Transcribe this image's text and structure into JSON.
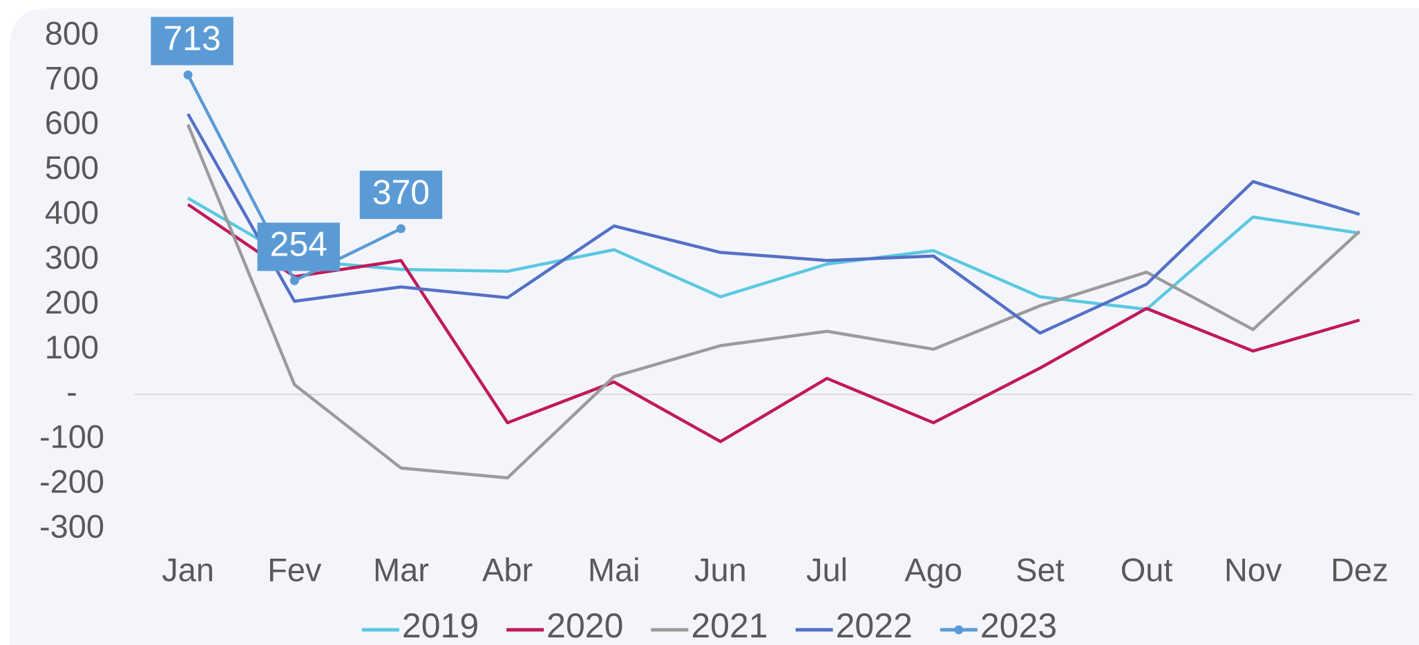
{
  "chart_data": {
    "type": "line",
    "categories": [
      "Jan",
      "Fev",
      "Mar",
      "Abr",
      "Mai",
      "Jun",
      "Jul",
      "Ago",
      "Set",
      "Out",
      "Nov",
      "Dez"
    ],
    "series": [
      {
        "name": "2019",
        "color": "#5bc8e0",
        "values": [
          438,
          300,
          279,
          275,
          323,
          218,
          291,
          321,
          218,
          190,
          396,
          360
        ]
      },
      {
        "name": "2020",
        "color": "#c0195a",
        "values": [
          424,
          263,
          299,
          -63,
          28,
          -105,
          36,
          -63,
          59,
          192,
          97,
          166
        ]
      },
      {
        "name": "2021",
        "color": "#9b9b9b",
        "values": [
          602,
          22,
          -164,
          -186,
          40,
          109,
          141,
          101,
          198,
          273,
          145,
          364
        ]
      },
      {
        "name": "2022",
        "color": "#5470c6",
        "values": [
          626,
          208,
          240,
          216,
          376,
          317,
          299,
          309,
          137,
          246,
          475,
          402
        ]
      },
      {
        "name": "2023",
        "color": "#5b9bd5",
        "values": [
          713,
          254,
          370,
          null,
          null,
          null,
          null,
          null,
          null,
          null,
          null,
          null
        ],
        "markers": true,
        "data_labels": true
      }
    ],
    "ylim": [
      -300,
      800
    ],
    "yticks": [
      -300,
      -200,
      -100,
      {
        "value": 0,
        "label": "-"
      },
      100,
      200,
      300,
      400,
      500,
      600,
      700,
      800
    ],
    "zero_line": true,
    "legend": "bottom"
  }
}
